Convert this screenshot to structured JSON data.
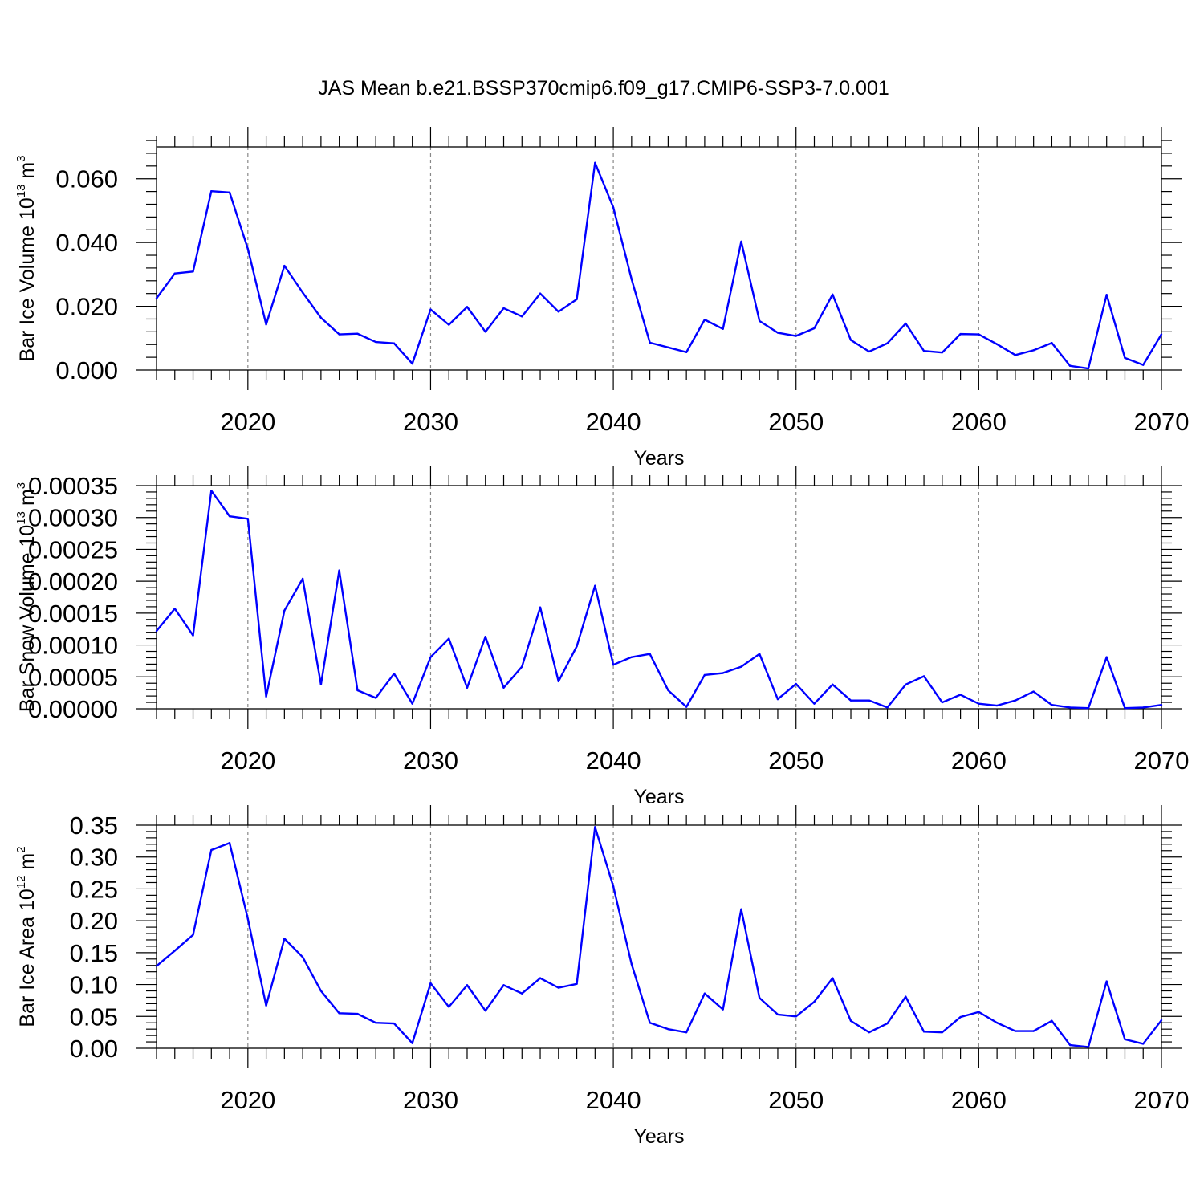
{
  "title": "JAS Mean b.e21.BSSP370cmip6.f09_g17.CMIP6-SSP3-7.0.001",
  "colors": {
    "series": "#0000ff",
    "grid": "#888888",
    "axis": "#000000"
  },
  "chart_data": [
    {
      "type": "line",
      "xlabel": "Years",
      "ylabel": {
        "main": "Bar Ice Volume 10",
        "exp": "13",
        "unit": " m",
        "unit_exp": "3"
      },
      "xlim": [
        2015,
        2070
      ],
      "ylim": [
        0,
        0.07
      ],
      "xticks": [
        "2020",
        "2030",
        "2040",
        "2050",
        "2060",
        "2070"
      ],
      "yticks": [
        "0.000",
        "0.020",
        "0.040",
        "0.060"
      ],
      "grid": "vertical dashed at major x ticks",
      "x": [
        2015,
        2016,
        2017,
        2018,
        2019,
        2020,
        2021,
        2022,
        2023,
        2024,
        2025,
        2026,
        2027,
        2028,
        2029,
        2030,
        2031,
        2032,
        2033,
        2034,
        2035,
        2036,
        2037,
        2038,
        2039,
        2040,
        2041,
        2042,
        2043,
        2044,
        2045,
        2046,
        2047,
        2048,
        2049,
        2050,
        2051,
        2052,
        2053,
        2054,
        2055,
        2056,
        2057,
        2058,
        2059,
        2060,
        2061,
        2062,
        2063,
        2064,
        2065,
        2066,
        2067,
        2068,
        2069,
        2070
      ],
      "series": [
        {
          "values": [
            0.0225,
            0.0303,
            0.0309,
            0.0561,
            0.0557,
            0.038,
            0.0143,
            0.0327,
            0.0243,
            0.0164,
            0.0112,
            0.0114,
            0.0088,
            0.0084,
            0.002,
            0.019,
            0.0142,
            0.0198,
            0.012,
            0.0194,
            0.0168,
            0.024,
            0.0183,
            0.0222,
            0.065,
            0.051,
            0.0285,
            0.0086,
            0.0071,
            0.0056,
            0.0158,
            0.0129,
            0.0403,
            0.0154,
            0.0117,
            0.0107,
            0.0131,
            0.0237,
            0.0094,
            0.0058,
            0.0084,
            0.0146,
            0.006,
            0.0055,
            0.0113,
            0.0112,
            0.0081,
            0.0047,
            0.0062,
            0.0085,
            0.0013,
            0.0005,
            0.0236,
            0.0038,
            0.0016,
            0.0112
          ]
        }
      ]
    },
    {
      "type": "line",
      "xlabel": "Years",
      "ylabel": {
        "main": "Bar Snow Volume 10",
        "exp": "13",
        "unit": " m",
        "unit_exp": "3"
      },
      "xlim": [
        2015,
        2070
      ],
      "ylim": [
        0,
        0.00035
      ],
      "xticks": [
        "2020",
        "2030",
        "2040",
        "2050",
        "2060",
        "2070"
      ],
      "yticks": [
        "0.00000",
        "0.00005",
        "0.00010",
        "0.00015",
        "0.00020",
        "0.00025",
        "0.00030",
        "0.00035"
      ],
      "grid": "vertical dashed at major x ticks",
      "x": [
        2015,
        2016,
        2017,
        2018,
        2019,
        2020,
        2021,
        2022,
        2023,
        2024,
        2025,
        2026,
        2027,
        2028,
        2029,
        2030,
        2031,
        2032,
        2033,
        2034,
        2035,
        2036,
        2037,
        2038,
        2039,
        2040,
        2041,
        2042,
        2043,
        2044,
        2045,
        2046,
        2047,
        2048,
        2049,
        2050,
        2051,
        2052,
        2053,
        2054,
        2055,
        2056,
        2057,
        2058,
        2059,
        2060,
        2061,
        2062,
        2063,
        2064,
        2065,
        2066,
        2067,
        2068,
        2069,
        2070
      ],
      "series": [
        {
          "values": [
            0.000122,
            0.000157,
            0.000115,
            0.000342,
            0.000302,
            0.000298,
            1.9e-05,
            0.000154,
            0.000204,
            3.8e-05,
            0.000217,
            2.9e-05,
            1.7e-05,
            5.5e-05,
            8e-06,
            8.1e-05,
            0.00011,
            3.3e-05,
            0.000113,
            3.3e-05,
            6.6e-05,
            0.000159,
            4.3e-05,
            9.8e-05,
            0.000193,
            6.9e-05,
            8.1e-05,
            8.6e-05,
            2.9e-05,
            3e-06,
            5.3e-05,
            5.6e-05,
            6.6e-05,
            8.6e-05,
            1.5e-05,
            3.9e-05,
            8e-06,
            3.8e-05,
            1.3e-05,
            1.3e-05,
            2e-06,
            3.8e-05,
            5.1e-05,
            1e-05,
            2.2e-05,
            8e-06,
            5e-06,
            1.3e-05,
            2.7e-05,
            6e-06,
            2e-06,
            1e-06,
            8.1e-05,
            1e-06,
            2e-06,
            6e-06
          ]
        }
      ]
    },
    {
      "type": "line",
      "xlabel": "Years",
      "ylabel": {
        "main": "Bar Ice Area 10",
        "exp": "12",
        "unit": " m",
        "unit_exp": "2"
      },
      "xlim": [
        2015,
        2070
      ],
      "ylim": [
        0,
        0.35
      ],
      "xticks": [
        "2020",
        "2030",
        "2040",
        "2050",
        "2060",
        "2070"
      ],
      "yticks": [
        "0.00",
        "0.05",
        "0.10",
        "0.15",
        "0.20",
        "0.25",
        "0.30",
        "0.35"
      ],
      "grid": "vertical dashed at major x ticks",
      "x": [
        2015,
        2016,
        2017,
        2018,
        2019,
        2020,
        2021,
        2022,
        2023,
        2024,
        2025,
        2026,
        2027,
        2028,
        2029,
        2030,
        2031,
        2032,
        2033,
        2034,
        2035,
        2036,
        2037,
        2038,
        2039,
        2040,
        2041,
        2042,
        2043,
        2044,
        2045,
        2046,
        2047,
        2048,
        2049,
        2050,
        2051,
        2052,
        2053,
        2054,
        2055,
        2056,
        2057,
        2058,
        2059,
        2060,
        2061,
        2062,
        2063,
        2064,
        2065,
        2066,
        2067,
        2068,
        2069,
        2070
      ],
      "series": [
        {
          "values": [
            0.129,
            0.153,
            0.178,
            0.311,
            0.322,
            0.203,
            0.067,
            0.172,
            0.143,
            0.09,
            0.055,
            0.054,
            0.04,
            0.039,
            0.008,
            0.102,
            0.065,
            0.099,
            0.059,
            0.099,
            0.086,
            0.11,
            0.095,
            0.101,
            0.347,
            0.254,
            0.132,
            0.04,
            0.03,
            0.025,
            0.086,
            0.061,
            0.218,
            0.079,
            0.053,
            0.05,
            0.073,
            0.11,
            0.043,
            0.025,
            0.039,
            0.081,
            0.026,
            0.025,
            0.049,
            0.057,
            0.04,
            0.027,
            0.027,
            0.043,
            0.005,
            0.002,
            0.105,
            0.014,
            0.007,
            0.044
          ]
        }
      ]
    }
  ]
}
